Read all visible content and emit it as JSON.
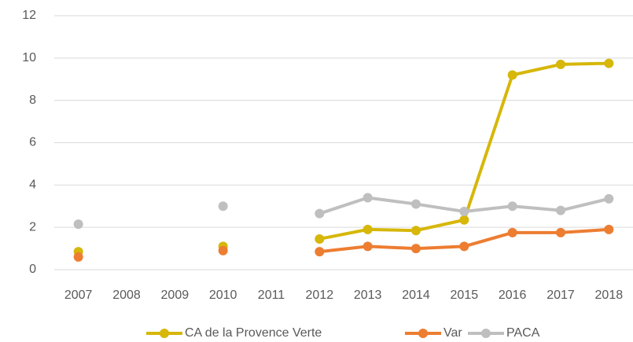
{
  "chart_data": {
    "type": "line",
    "categories": [
      "2007",
      "2008",
      "2009",
      "2010",
      "2011",
      "2012",
      "2013",
      "2014",
      "2015",
      "2016",
      "2017",
      "2018"
    ],
    "series": [
      {
        "name": "CA de la Provence Verte",
        "color": "#d6b70a",
        "values": [
          0.85,
          null,
          null,
          1.1,
          null,
          1.45,
          1.9,
          1.85,
          2.35,
          9.2,
          9.7,
          9.75
        ]
      },
      {
        "name": "Var",
        "color": "#ed7d31",
        "values": [
          0.6,
          null,
          null,
          0.9,
          null,
          0.85,
          1.1,
          1.0,
          1.1,
          1.75,
          1.75,
          1.9
        ]
      },
      {
        "name": "PACA",
        "color": "#bfbfbf",
        "values": [
          2.15,
          null,
          null,
          3.0,
          null,
          2.65,
          3.4,
          3.1,
          2.75,
          3.0,
          2.8,
          3.35
        ]
      }
    ],
    "ylim": [
      0,
      12
    ],
    "yticks": [
      0,
      2,
      4,
      6,
      8,
      10,
      12
    ],
    "grid": true,
    "legend": "bottom"
  }
}
